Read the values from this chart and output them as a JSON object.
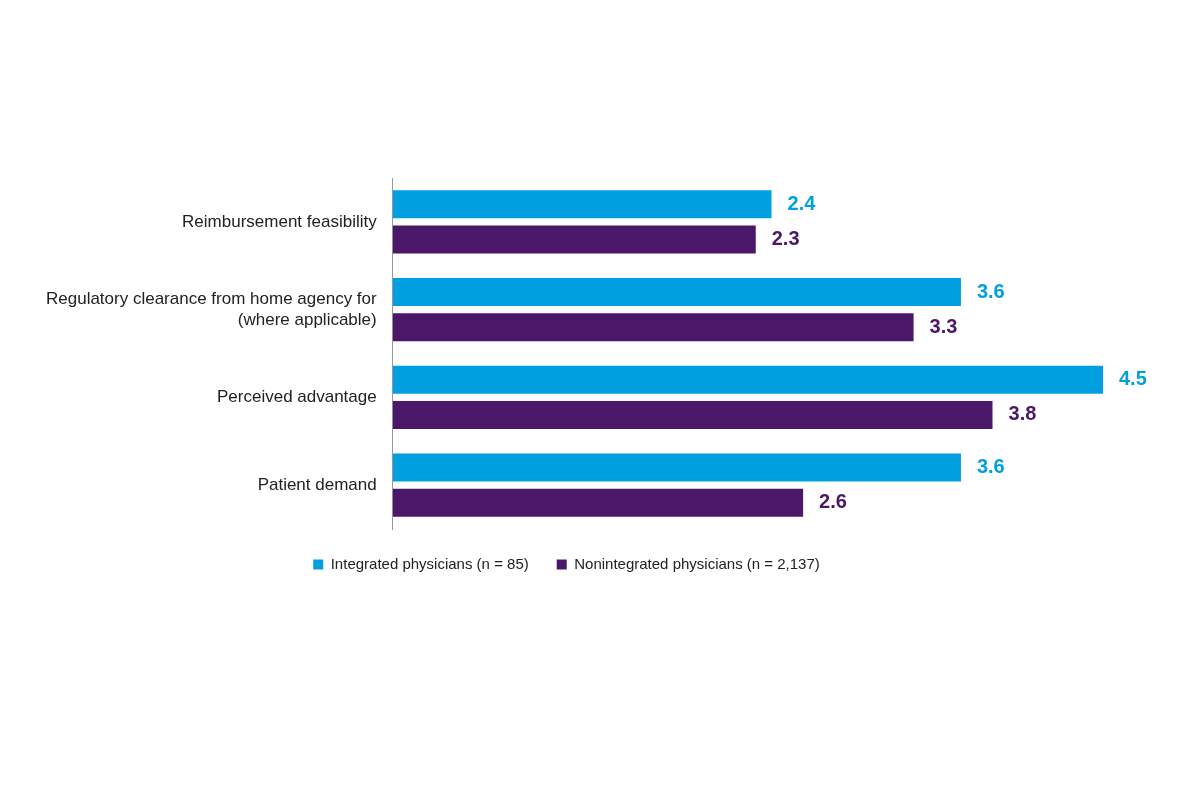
{
  "chart_data": {
    "type": "bar",
    "orientation": "horizontal",
    "categories": [
      "Reimbursement feasibility",
      "Regulatory clearance from home agency for (where applicable)",
      "Perceived advantage",
      "Patient demand"
    ],
    "series": [
      {
        "name": "Integrated physicians (n = 85)",
        "color": "#009fe0",
        "values": [
          2.4,
          3.6,
          4.5,
          3.6
        ]
      },
      {
        "name": "Nonintegrated physicians (n = 2,137)",
        "color": "#4b1869",
        "values": [
          2.3,
          3.3,
          3.8,
          2.6
        ]
      }
    ],
    "data_labels": true,
    "legend": "bottom"
  }
}
